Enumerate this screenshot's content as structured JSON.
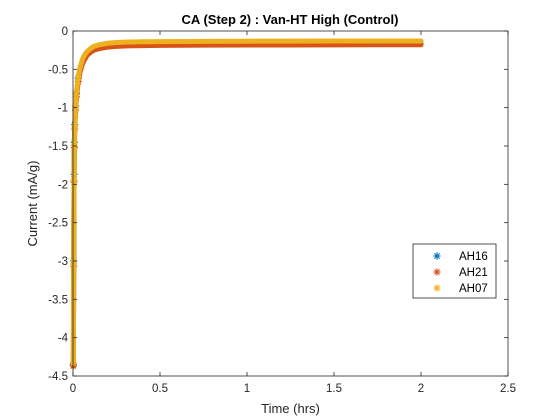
{
  "chart_data": {
    "type": "scatter",
    "title": "CA (Step 2) : Van-HT High (Control)",
    "xlabel": "Time (hrs)",
    "ylabel": "Current (mA/g)",
    "xlim": [
      0,
      2.5
    ],
    "ylim": [
      -4.5,
      0
    ],
    "xticks": [
      0,
      0.5,
      1,
      1.5,
      2,
      2.5
    ],
    "yticks": [
      0,
      -0.5,
      -1,
      -1.5,
      -2,
      -2.5,
      -3,
      -3.5,
      -4,
      -4.5
    ],
    "xtick_labels": [
      "0",
      "0.5",
      "1",
      "1.5",
      "2",
      "2.5"
    ],
    "ytick_labels": [
      "0",
      "-0.5",
      "-1",
      "-1.5",
      "-2",
      "-2.5",
      "-3",
      "-3.5",
      "-4",
      "-4.5"
    ],
    "grid": false,
    "legend_position": "right",
    "marker": "asterisk",
    "series": [
      {
        "name": "AH16",
        "color": "#0072BD",
        "x": [
          0.002,
          0.004,
          0.006,
          0.008,
          0.01,
          0.015,
          0.02,
          0.03,
          0.04,
          0.05,
          0.06,
          0.07,
          0.08,
          0.1,
          0.12,
          0.15,
          0.2,
          0.25,
          0.3,
          0.4,
          0.5,
          0.75,
          1.0,
          1.25,
          1.5,
          1.75,
          2.0
        ],
        "y": [
          -4.35,
          -3.0,
          -1.87,
          -1.45,
          -1.22,
          -0.98,
          -0.82,
          -0.62,
          -0.5,
          -0.42,
          -0.36,
          -0.32,
          -0.29,
          -0.25,
          -0.23,
          -0.21,
          -0.19,
          -0.185,
          -0.18,
          -0.175,
          -0.172,
          -0.17,
          -0.168,
          -0.167,
          -0.166,
          -0.165,
          -0.165
        ]
      },
      {
        "name": "AH21",
        "color": "#D95319",
        "x": [
          0.002,
          0.004,
          0.006,
          0.008,
          0.01,
          0.015,
          0.02,
          0.03,
          0.04,
          0.05,
          0.06,
          0.07,
          0.08,
          0.1,
          0.12,
          0.15,
          0.2,
          0.25,
          0.3,
          0.4,
          0.5,
          0.75,
          1.0,
          1.25,
          1.5,
          1.75,
          2.0
        ],
        "y": [
          -4.37,
          -3.07,
          -1.97,
          -1.52,
          -1.28,
          -1.03,
          -0.86,
          -0.66,
          -0.54,
          -0.46,
          -0.4,
          -0.36,
          -0.32,
          -0.28,
          -0.25,
          -0.23,
          -0.21,
          -0.2,
          -0.195,
          -0.19,
          -0.188,
          -0.185,
          -0.183,
          -0.182,
          -0.181,
          -0.18,
          -0.18
        ]
      },
      {
        "name": "AH07",
        "color": "#EDB120",
        "x": [
          0.002,
          0.004,
          0.006,
          0.008,
          0.01,
          0.015,
          0.02,
          0.03,
          0.04,
          0.05,
          0.06,
          0.07,
          0.08,
          0.1,
          0.12,
          0.15,
          0.2,
          0.25,
          0.3,
          0.4,
          0.5,
          0.75,
          1.0,
          1.25,
          1.5,
          1.75,
          2.0
        ],
        "y": [
          -4.33,
          -3.04,
          -1.95,
          -1.5,
          -1.25,
          -0.98,
          -0.8,
          -0.6,
          -0.48,
          -0.4,
          -0.34,
          -0.3,
          -0.27,
          -0.23,
          -0.2,
          -0.18,
          -0.16,
          -0.15,
          -0.145,
          -0.14,
          -0.138,
          -0.135,
          -0.133,
          -0.132,
          -0.131,
          -0.13,
          -0.13
        ]
      }
    ]
  }
}
